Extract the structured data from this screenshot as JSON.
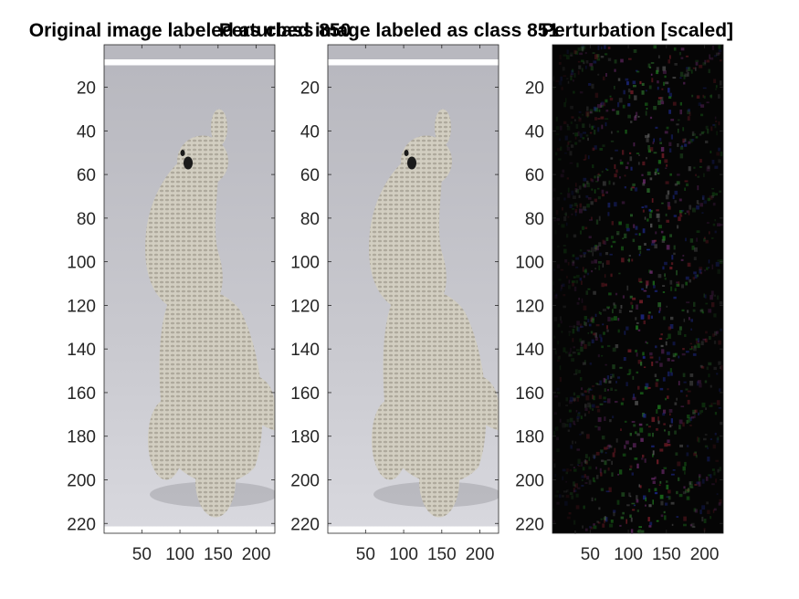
{
  "chart_data": [
    {
      "type": "image",
      "title": "Original image labeled as class 850",
      "xlim": [
        1,
        224
      ],
      "ylim": [
        1,
        224
      ],
      "xticks": [
        50,
        100,
        150,
        200
      ],
      "yticks": [
        20,
        40,
        60,
        80,
        100,
        120,
        140,
        160,
        180,
        200,
        220
      ],
      "content": "crocheted-toy-photo"
    },
    {
      "type": "image",
      "title": "Perturbed image labeled as class 851",
      "xlim": [
        1,
        224
      ],
      "ylim": [
        1,
        224
      ],
      "xticks": [
        50,
        100,
        150,
        200
      ],
      "yticks": [
        20,
        40,
        60,
        80,
        100,
        120,
        140,
        160,
        180,
        200,
        220
      ],
      "content": "crocheted-toy-photo"
    },
    {
      "type": "image",
      "title": "Perturbation [scaled]",
      "xlim": [
        1,
        224
      ],
      "ylim": [
        1,
        224
      ],
      "xticks": [
        50,
        100,
        150,
        200
      ],
      "yticks": [
        20,
        40,
        60,
        80,
        100,
        120,
        140,
        160,
        180,
        200,
        220
      ],
      "content": "noise-pattern"
    }
  ],
  "colors": {
    "photo_background_top": "#b9b9c0",
    "photo_background_bottom": "#d6d6dc",
    "toy_base": "#cfcbbe",
    "toy_shadow": "#8e8a7d",
    "noise_background": "#050505",
    "noise_palette": [
      "#1e7a1e",
      "#7a1e2a",
      "#1e2a8a",
      "#5a5a5a",
      "#2a6a2a",
      "#6a2a6a"
    ]
  }
}
